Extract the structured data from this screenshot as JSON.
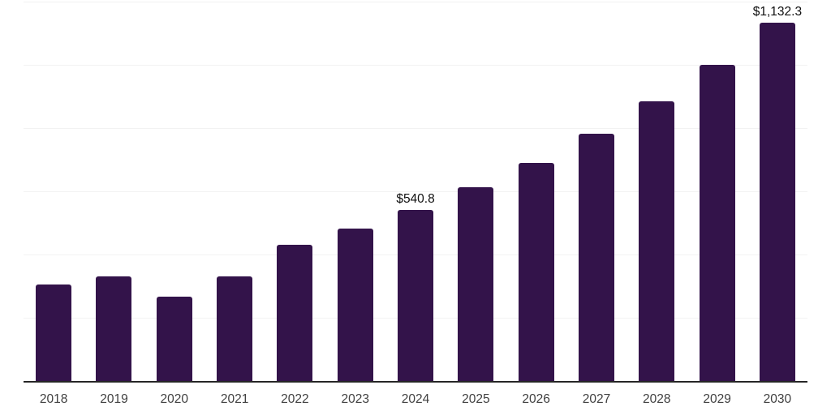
{
  "chart_data": {
    "type": "bar",
    "title": "",
    "xlabel": "",
    "ylabel": "",
    "categories": [
      "2018",
      "2019",
      "2020",
      "2021",
      "2022",
      "2023",
      "2024",
      "2025",
      "2026",
      "2027",
      "2028",
      "2029",
      "2030"
    ],
    "values": [
      306,
      330,
      267,
      332,
      431,
      483,
      540.8,
      612,
      689,
      781,
      885,
      1000,
      1132.3
    ],
    "data_labels": {
      "2024": "$540.8",
      "2030": "$1,132.3"
    },
    "ylim": [
      0,
      1200
    ],
    "grid_step": 200,
    "grid": "horizontal-only",
    "y_tick_labels_visible": false,
    "legend": "none",
    "colors": {
      "bar": "#33134a",
      "gridline": "#f2f2f2",
      "axis_line": "#262626",
      "data_label_text": "#0f0f0f",
      "tick_label_text": "#404040",
      "background": "#ffffff"
    }
  }
}
